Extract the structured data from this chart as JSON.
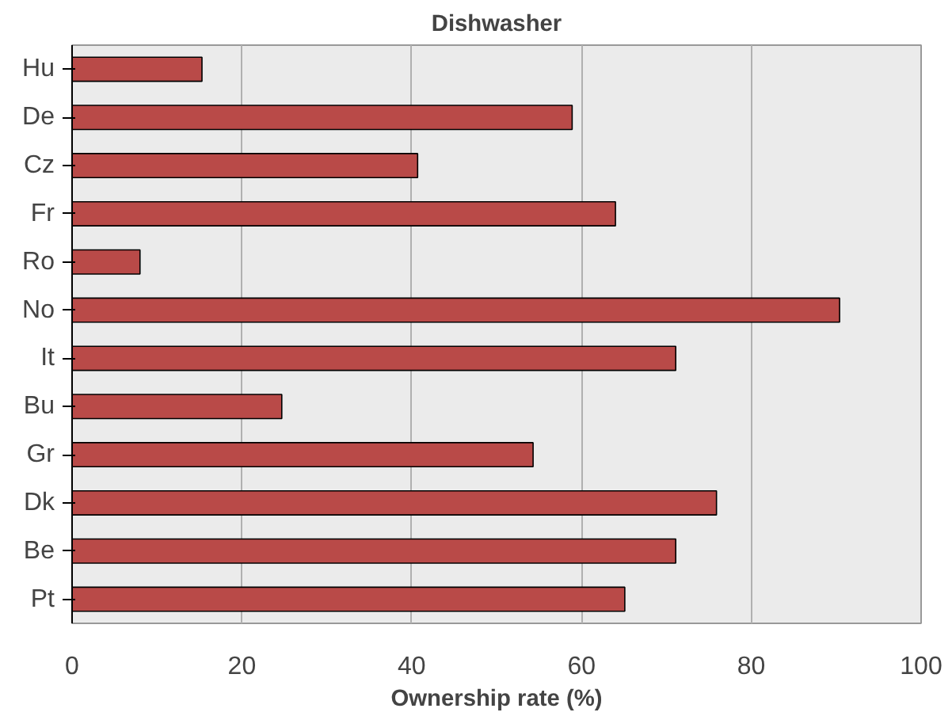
{
  "chart_data": {
    "type": "bar",
    "orientation": "horizontal",
    "title": "Dishwasher",
    "xlabel": "Ownership rate (%)",
    "categories": [
      "Hu",
      "De",
      "Cz",
      "Fr",
      "Ro",
      "No",
      "It",
      "Bu",
      "Gr",
      "Dk",
      "Be",
      "Pt"
    ],
    "values": [
      15.3,
      58.9,
      40.7,
      64.0,
      8.0,
      90.4,
      71.1,
      24.7,
      54.3,
      75.9,
      71.1,
      65.1
    ],
    "color": "#b94a48",
    "xlim": [
      0,
      100
    ],
    "xticks": [
      0,
      20,
      40,
      60,
      80,
      100
    ],
    "grid": "x"
  }
}
